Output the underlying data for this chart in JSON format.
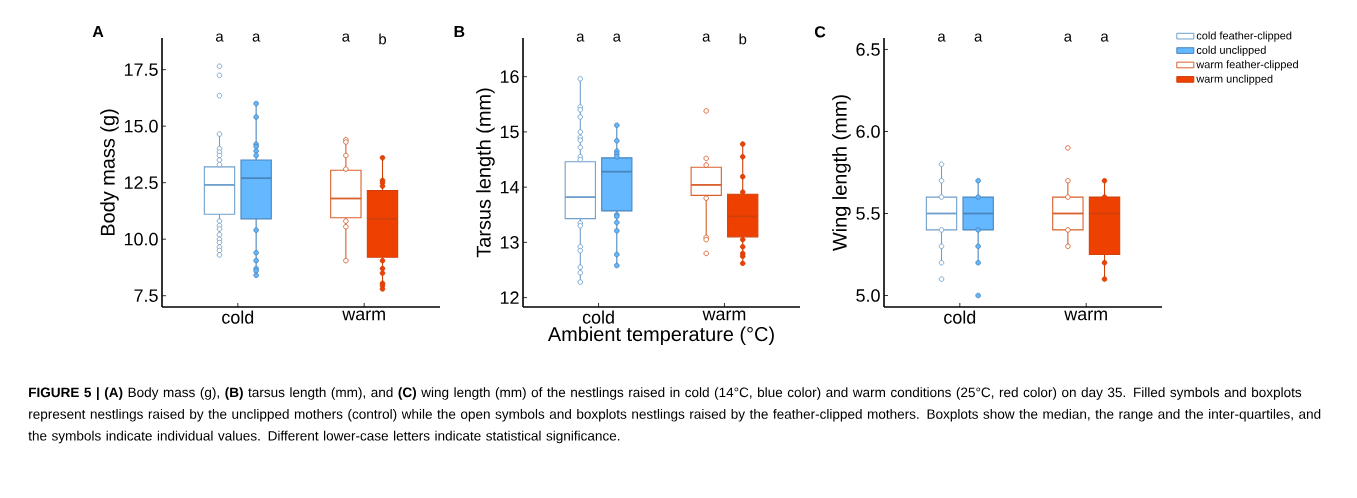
{
  "chart_data": [
    {
      "type": "box",
      "title": "A",
      "ylabel": "Body mass (g)",
      "categories": [
        "cold",
        "warm"
      ],
      "ylim": [
        7.0,
        18.9
      ],
      "yticks": [
        7.5,
        {
          "value": 10,
          "label": "10.0"
        },
        12.5,
        {
          "value": 15,
          "label": "15.0"
        },
        17.5
      ],
      "annotations": [
        "a",
        "a",
        "a",
        "b"
      ],
      "series": [
        {
          "color": "#6fa0cc",
          "colors": [
            "#ffffff",
            "#ffffff"
          ],
          "boxes": [
            {
              "low": 9.3,
              "q1": 11.1,
              "median": 12.4,
              "q3": 13.2,
              "high": 14.65,
              "outliers": [
                17.65,
                17.25,
                16.35,
                14.65,
                14.0,
                13.85,
                13.7,
                13.5,
                13.3,
                10.8,
                10.6,
                10.45,
                10.2,
                10.0,
                9.85,
                9.65,
                9.5,
                9.3
              ]
            },
            null
          ]
        },
        {
          "color": "#4a86bd",
          "colors": [
            "#63b8ff",
            "#63b8ff"
          ],
          "boxes": [
            {
              "low": 8.4,
              "q1": 10.9,
              "median": 12.7,
              "q3": 13.5,
              "high": 16.0,
              "outliers": [
                16.0,
                15.4,
                14.2,
                14.1,
                13.9,
                13.7,
                10.4,
                9.4,
                9.05,
                8.7,
                8.6,
                8.4
              ]
            },
            null
          ]
        },
        {
          "color": "#d95f2b",
          "colors": [
            "#ffffff",
            "#ffffff"
          ],
          "boxes": [
            null,
            {
              "low": 9.05,
              "q1": 10.95,
              "median": 11.8,
              "q3": 13.05,
              "high": 14.3,
              "outliers": [
                14.4,
                14.3,
                13.7,
                13.1,
                10.8,
                10.55,
                9.05
              ]
            }
          ]
        },
        {
          "color": "#d2400a",
          "colors": [
            "#ee4000",
            "#ee4000"
          ],
          "boxes": [
            null,
            {
              "low": 7.8,
              "q1": 9.2,
              "median": 10.9,
              "q3": 12.15,
              "high": 13.6,
              "outliers": [
                13.6,
                12.6,
                12.5,
                12.35,
                9.05,
                8.7,
                8.5,
                8.05,
                7.95,
                7.8
              ]
            }
          ]
        }
      ]
    },
    {
      "type": "box",
      "title": "B",
      "ylabel": "Tarsus length (mm)",
      "xlabel": "Ambient temperature (°C)",
      "categories": [
        "cold",
        "warm"
      ],
      "ylim": [
        11.83,
        16.7
      ],
      "yticks": [
        12,
        13,
        14,
        15,
        16
      ],
      "annotations": [
        "a",
        "a",
        "a",
        "b"
      ],
      "series": [
        {
          "color": "#6fa0cc",
          "colors": [
            "#ffffff",
            "#ffffff"
          ],
          "boxes": [
            {
              "low": 12.28,
              "q1": 13.43,
              "median": 13.82,
              "q3": 14.46,
              "high": 15.96,
              "outliers": [
                15.96,
                15.45,
                15.4,
                15.27,
                15.0,
                14.9,
                14.85,
                14.72,
                14.55,
                14.5,
                13.35,
                13.3,
                12.92,
                12.85,
                12.55,
                12.45,
                12.28
              ]
            },
            null
          ]
        },
        {
          "color": "#4a86bd",
          "colors": [
            "#63b8ff",
            "#63b8ff"
          ],
          "boxes": [
            {
              "low": 12.58,
              "q1": 13.57,
              "median": 14.28,
              "q3": 14.53,
              "high": 15.12,
              "outliers": [
                15.12,
                14.84,
                14.65,
                14.6,
                14.55,
                13.5,
                13.47,
                13.36,
                13.21,
                12.78,
                12.58
              ]
            },
            null
          ]
        },
        {
          "color": "#d95f2b",
          "colors": [
            "#ffffff",
            "#ffffff"
          ],
          "boxes": [
            null,
            {
              "low": 13.09,
              "q1": 13.85,
              "median": 14.04,
              "q3": 14.36,
              "high": 14.45,
              "outliers": [
                15.38,
                14.52,
                14.4,
                13.8,
                13.09,
                13.05,
                12.8
              ]
            }
          ]
        },
        {
          "color": "#d2400a",
          "colors": [
            "#ee4000",
            "#ee4000"
          ],
          "boxes": [
            null,
            {
              "low": 12.62,
              "q1": 13.1,
              "median": 13.47,
              "q3": 13.87,
              "high": 14.78,
              "outliers": [
                14.78,
                14.55,
                14.19,
                13.91,
                13.05,
                12.92,
                12.8,
                12.75,
                12.62
              ]
            }
          ]
        }
      ]
    },
    {
      "type": "box",
      "title": "C",
      "ylabel": "Wing length (mm)",
      "categories": [
        "cold",
        "warm"
      ],
      "ylim": [
        4.93,
        6.57
      ],
      "yticks": [
        {
          "value": 5,
          "label": "5.0"
        },
        5.5,
        {
          "value": 6,
          "label": "6.0"
        },
        6.5
      ],
      "annotations": [
        "a",
        "a",
        "a",
        "a"
      ],
      "legend": "top right",
      "series": [
        {
          "name": "cold feather-clipped",
          "color": "#6fa0cc",
          "colors": [
            "#ffffff",
            "#ffffff"
          ],
          "boxes": [
            {
              "low": 5.2,
              "q1": 5.4,
              "median": 5.5,
              "q3": 5.6,
              "high": 5.8,
              "outliers": [
                5.8,
                5.7,
                5.6,
                5.4,
                5.3,
                5.2,
                5.1
              ]
            },
            null
          ]
        },
        {
          "name": "cold unclipped",
          "color": "#4a86bd",
          "colors": [
            "#63b8ff",
            "#63b8ff"
          ],
          "boxes": [
            {
              "low": 5.2,
              "q1": 5.4,
              "median": 5.5,
              "q3": 5.6,
              "high": 5.7,
              "outliers": [
                5.7,
                5.6,
                5.4,
                5.3,
                5.2,
                5.0
              ]
            },
            null
          ]
        },
        {
          "name": "warm feather-clipped",
          "color": "#d95f2b",
          "colors": [
            "#ffffff",
            "#ffffff"
          ],
          "boxes": [
            null,
            {
              "low": 5.3,
              "q1": 5.4,
              "median": 5.5,
              "q3": 5.6,
              "high": 5.7,
              "outliers": [
                5.9,
                5.7,
                5.6,
                5.4,
                5.3
              ]
            }
          ]
        },
        {
          "name": "warm unclipped",
          "color": "#d2400a",
          "colors": [
            "#ee4000",
            "#ee4000"
          ],
          "boxes": [
            null,
            {
              "low": 5.1,
              "q1": 5.25,
              "median": 5.5,
              "q3": 5.6,
              "high": 5.7,
              "outliers": [
                5.7,
                5.6,
                5.2,
                5.1
              ]
            }
          ]
        }
      ]
    },
    {
      "type": "other",
      "annotations": [
        "**FIGURE 5 | (A)** Body mass (g), **(B)** tarsus length (mm), and **(C)** wing length (mm) of the nestlings raised in cold (14°C, blue color) and warm conditions (25°C, red color) on day 35. Filled symbols and boxplots represent nestlings raised by the unclipped mothers (control) while the open symbols and boxplots nestlings raised by the feather-clipped mothers. Boxplots show the median, the range and the inter-quartiles, and the symbols indicate individual values. Different lower-case letters indicate statistical significance."
      ]
    }
  ]
}
